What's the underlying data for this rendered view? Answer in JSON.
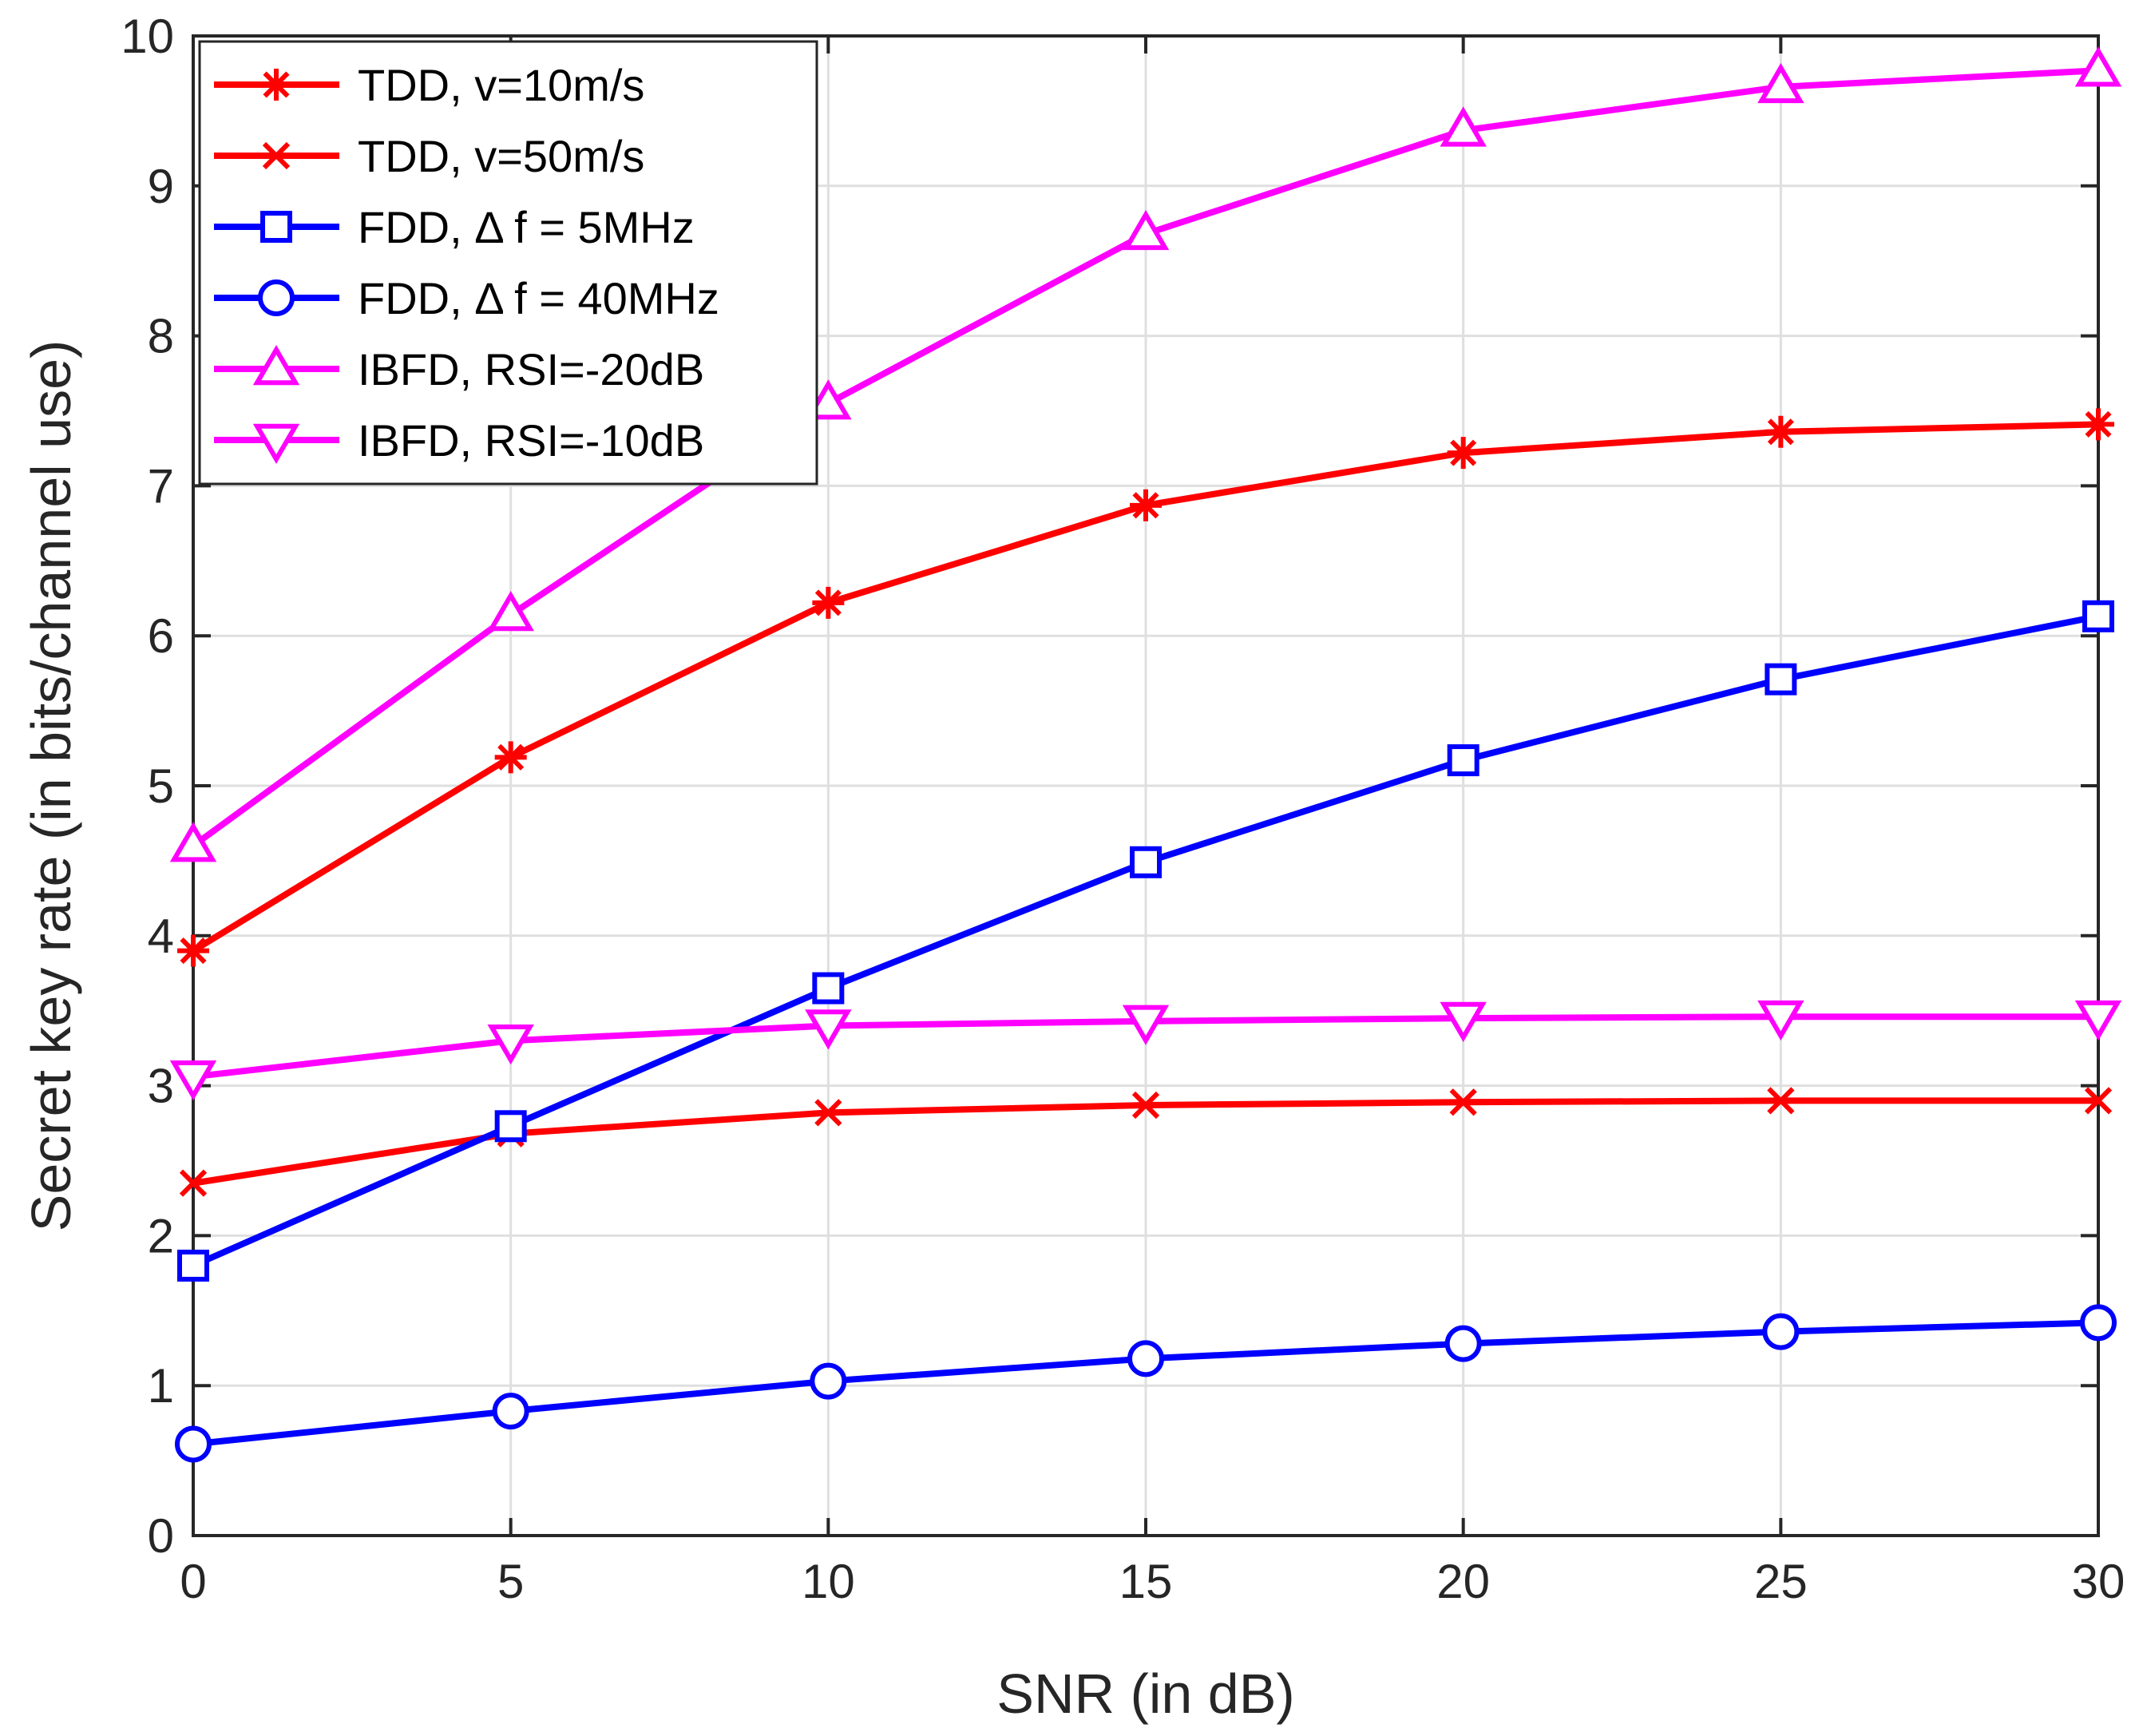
{
  "chart_data": {
    "type": "line",
    "title": "",
    "xlabel": "SNR (in dB)",
    "ylabel": "Secret key rate (in bits/channel use)",
    "xlim": [
      0,
      30
    ],
    "ylim": [
      0,
      10
    ],
    "grid": true,
    "legend_position": "top-left",
    "x": [
      0,
      5,
      10,
      15,
      20,
      25,
      30
    ],
    "x_ticks": [
      "0",
      "5",
      "10",
      "15",
      "20",
      "25",
      "30"
    ],
    "y_ticks": [
      "0",
      "1",
      "2",
      "3",
      "4",
      "5",
      "6",
      "7",
      "8",
      "9",
      "10"
    ],
    "series": [
      {
        "name": "TDD, v=10m/s",
        "color": "#ff0000",
        "marker": "asterisk",
        "values": [
          3.9,
          5.19,
          6.22,
          6.87,
          7.22,
          7.36,
          7.41
        ]
      },
      {
        "name": "TDD, v=50m/s",
        "color": "#ff0000",
        "marker": "x",
        "values": [
          2.35,
          2.68,
          2.82,
          2.87,
          2.89,
          2.9,
          2.9
        ]
      },
      {
        "name": "FDD, Δ f = 5MHz",
        "color": "#0000ff",
        "marker": "square",
        "values": [
          1.8,
          2.73,
          3.65,
          4.49,
          5.17,
          5.71,
          6.13
        ]
      },
      {
        "name": "FDD, Δ f = 40MHz",
        "color": "#0000ff",
        "marker": "circle",
        "values": [
          0.61,
          0.83,
          1.03,
          1.18,
          1.28,
          1.36,
          1.42
        ]
      },
      {
        "name": "IBFD, RSI=-20dB",
        "color": "#ff00ff",
        "marker": "triangle-up",
        "values": [
          4.6,
          6.14,
          7.55,
          8.68,
          9.37,
          9.66,
          9.77
        ]
      },
      {
        "name": "IBFD, RSI=-10dB",
        "color": "#ff00ff",
        "marker": "triangle-down",
        "values": [
          3.06,
          3.3,
          3.4,
          3.43,
          3.45,
          3.46,
          3.46
        ]
      }
    ]
  }
}
